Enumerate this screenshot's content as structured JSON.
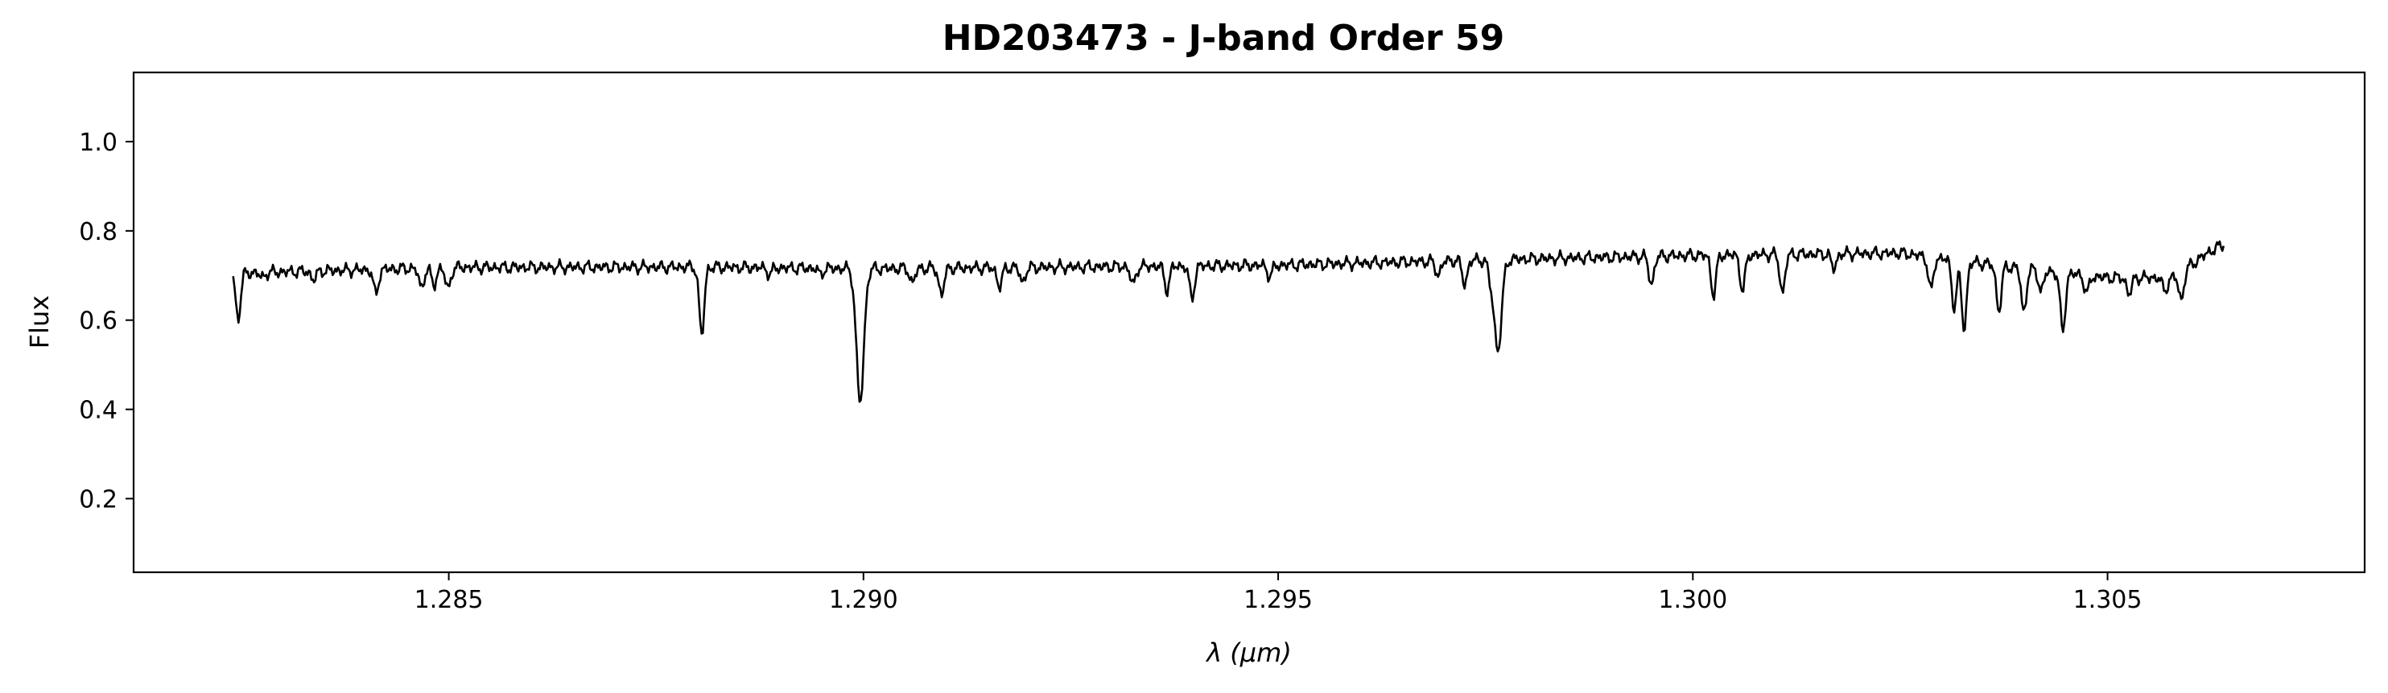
{
  "chart_data": {
    "type": "line",
    "title": "HD203473 - J-band Order 59",
    "xlabel": "λ (μm)",
    "ylabel": "Flux",
    "xlim": [
      1.2812,
      1.3081
    ],
    "ylim": [
      0.035,
      1.155
    ],
    "xticks": [
      1.285,
      1.29,
      1.295,
      1.3,
      1.305
    ],
    "xtick_labels": [
      "1.285",
      "1.290",
      "1.295",
      "1.300",
      "1.305"
    ],
    "yticks": [
      0.2,
      0.4,
      0.6,
      0.8,
      1.0
    ],
    "ytick_labels": [
      "0.2",
      "0.4",
      "0.6",
      "0.8",
      "1.0"
    ],
    "grid": false,
    "line_color": "#000000",
    "series": [
      {
        "values": {
          "x_range": [
            1.2824,
            1.3064
          ],
          "continuum": [
            [
              1.2824,
              0.705
            ],
            [
              1.285,
              0.718
            ],
            [
              1.288,
              0.719
            ],
            [
              1.29,
              0.715
            ],
            [
              1.292,
              0.718
            ],
            [
              1.295,
              0.723
            ],
            [
              1.2975,
              0.735
            ],
            [
              1.298,
              0.737
            ],
            [
              1.3,
              0.745
            ],
            [
              1.3025,
              0.75
            ],
            [
              1.304,
              0.715
            ],
            [
              1.305,
              0.695
            ],
            [
              1.3058,
              0.695
            ],
            [
              1.3062,
              0.75
            ],
            [
              1.3064,
              0.77
            ]
          ],
          "absorption_lines": [
            [
              1.28246,
              0.605
            ],
            [
              1.28275,
              0.695
            ],
            [
              1.28337,
              0.69
            ],
            [
              1.28412,
              0.658
            ],
            [
              1.28467,
              0.672
            ],
            [
              1.28482,
              0.678
            ],
            [
              1.28499,
              0.668
            ],
            [
              1.28805,
              0.565
            ],
            [
              1.28887,
              0.703
            ],
            [
              1.28948,
              0.703
            ],
            [
              1.28996,
              0.415
            ],
            [
              1.29059,
              0.683
            ],
            [
              1.29094,
              0.655
            ],
            [
              1.29164,
              0.674
            ],
            [
              1.29192,
              0.684
            ],
            [
              1.29325,
              0.678
            ],
            [
              1.29366,
              0.668
            ],
            [
              1.29396,
              0.648
            ],
            [
              1.2949,
              0.698
            ],
            [
              1.29693,
              0.7
            ],
            [
              1.29725,
              0.68
            ],
            [
              1.29756,
              0.7
            ],
            [
              1.29765,
              0.532
            ],
            [
              1.2995,
              0.678
            ],
            [
              1.30025,
              0.655
            ],
            [
              1.3006,
              0.665
            ],
            [
              1.30108,
              0.66
            ],
            [
              1.3017,
              0.715
            ],
            [
              1.30287,
              0.665
            ],
            [
              1.30315,
              0.63
            ],
            [
              1.30327,
              0.58
            ],
            [
              1.30369,
              0.62
            ],
            [
              1.30399,
              0.617
            ],
            [
              1.3042,
              0.665
            ],
            [
              1.30446,
              0.573
            ],
            [
              1.30475,
              0.66
            ],
            [
              1.30526,
              0.658
            ],
            [
              1.30569,
              0.665
            ],
            [
              1.30589,
              0.645
            ]
          ]
        }
      }
    ]
  }
}
